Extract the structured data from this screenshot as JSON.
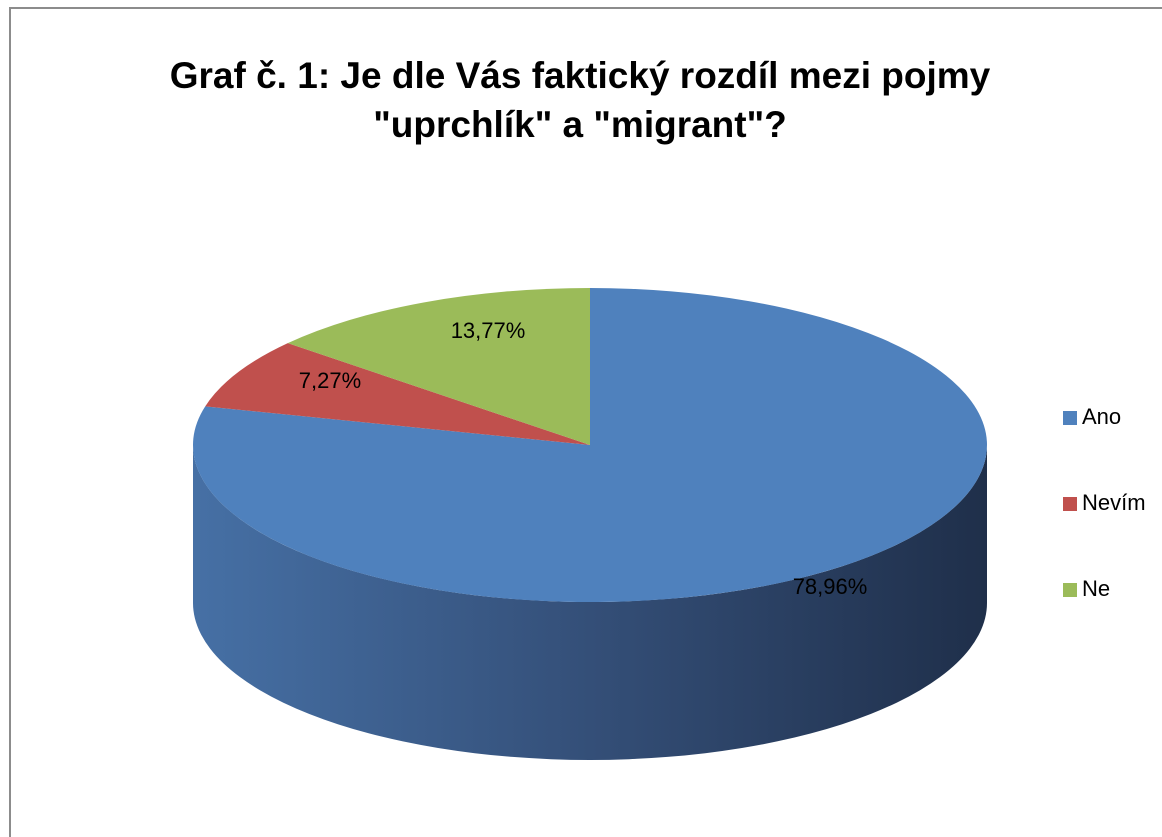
{
  "chart_data": {
    "type": "pie",
    "title": [
      "Graf č. 1: Je dle Vás faktický rozdíl mezi pojmy",
      "\"uprchlík\" a \"migrant\"?"
    ],
    "categories": [
      "Ano",
      "Nevím",
      "Ne"
    ],
    "values": [
      78.96,
      7.27,
      13.77
    ],
    "value_labels": [
      "78,96%",
      "7,27%",
      "13,77%"
    ],
    "colors": [
      "#4f81bd",
      "#c0504d",
      "#9bbb59"
    ],
    "legend": "right"
  }
}
